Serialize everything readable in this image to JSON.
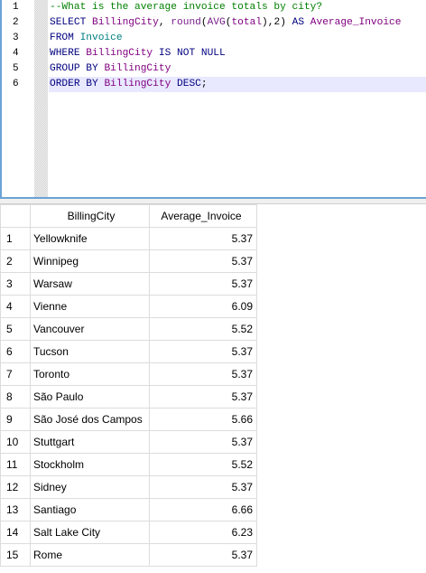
{
  "editor": {
    "line_numbers": [
      "1",
      "2",
      "3",
      "4",
      "5",
      "6"
    ],
    "lines": [
      [
        {
          "t": "--What is the average invoice totals by city?",
          "c": "cm"
        }
      ],
      [
        {
          "t": "SELECT ",
          "c": "kw"
        },
        {
          "t": "BillingCity",
          "c": "ident"
        },
        {
          "t": ", ",
          "c": "pl"
        },
        {
          "t": "round",
          "c": "fn"
        },
        {
          "t": "(",
          "c": "pl"
        },
        {
          "t": "AVG",
          "c": "fn"
        },
        {
          "t": "(",
          "c": "pl"
        },
        {
          "t": "total",
          "c": "ident"
        },
        {
          "t": "),2) ",
          "c": "pl"
        },
        {
          "t": "AS ",
          "c": "kw"
        },
        {
          "t": "Average_Invoice",
          "c": "ident"
        }
      ],
      [
        {
          "t": "FROM ",
          "c": "kw"
        },
        {
          "t": "Invoice",
          "c": "tbl"
        }
      ],
      [
        {
          "t": "WHERE ",
          "c": "kw"
        },
        {
          "t": "BillingCity ",
          "c": "ident"
        },
        {
          "t": "IS NOT NULL",
          "c": "kw"
        }
      ],
      [
        {
          "t": "GROUP BY ",
          "c": "kw"
        },
        {
          "t": "BillingCity",
          "c": "ident"
        }
      ],
      [
        {
          "t": "ORDER BY ",
          "c": "kw"
        },
        {
          "t": "BillingCity ",
          "c": "ident"
        },
        {
          "t": "DESC",
          "c": "kw"
        },
        {
          "t": ";",
          "c": "pl"
        }
      ]
    ],
    "active_line": 5
  },
  "results": {
    "columns": [
      "BillingCity",
      "Average_Invoice"
    ],
    "rows": [
      [
        "1",
        "Yellowknife",
        "5.37"
      ],
      [
        "2",
        "Winnipeg",
        "5.37"
      ],
      [
        "3",
        "Warsaw",
        "5.37"
      ],
      [
        "4",
        "Vienne",
        "6.09"
      ],
      [
        "5",
        "Vancouver",
        "5.52"
      ],
      [
        "6",
        "Tucson",
        "5.37"
      ],
      [
        "7",
        "Toronto",
        "5.37"
      ],
      [
        "8",
        "São Paulo",
        "5.37"
      ],
      [
        "9",
        "São José dos Campos",
        "5.66"
      ],
      [
        "10",
        "Stuttgart",
        "5.37"
      ],
      [
        "11",
        "Stockholm",
        "5.52"
      ],
      [
        "12",
        "Sidney",
        "5.37"
      ],
      [
        "13",
        "Santiago",
        "6.66"
      ],
      [
        "14",
        "Salt Lake City",
        "6.23"
      ],
      [
        "15",
        "Rome",
        "5.37"
      ]
    ]
  }
}
